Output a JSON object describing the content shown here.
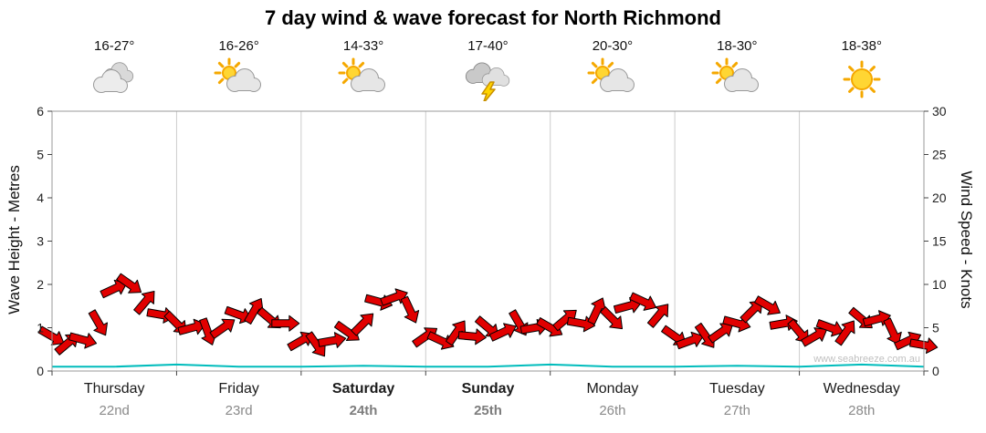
{
  "title": "7 day wind & wave forecast for North Richmond",
  "watermark": "www.seabreeze.com.au",
  "days": [
    {
      "name": "Thursday",
      "date": "22nd",
      "temp": "16-27°",
      "icon": "cloudy",
      "bold": false
    },
    {
      "name": "Friday",
      "date": "23rd",
      "temp": "16-26°",
      "icon": "partly-cloudy",
      "bold": false
    },
    {
      "name": "Saturday",
      "date": "24th",
      "temp": "14-33°",
      "icon": "partly-cloudy",
      "bold": true
    },
    {
      "name": "Sunday",
      "date": "25th",
      "temp": "17-40°",
      "icon": "thunderstorm",
      "bold": true
    },
    {
      "name": "Monday",
      "date": "26th",
      "temp": "20-30°",
      "icon": "partly-cloudy",
      "bold": false
    },
    {
      "name": "Tuesday",
      "date": "27th",
      "temp": "18-30°",
      "icon": "partly-cloudy",
      "bold": false
    },
    {
      "name": "Wednesday",
      "date": "28th",
      "temp": "18-38°",
      "icon": "sunny",
      "bold": false
    }
  ],
  "axes": {
    "left_label": "Wave Height - Metres",
    "right_label": "Wind Speed - Knots",
    "left_ticks": [
      0,
      1,
      2,
      3,
      4,
      5,
      6
    ],
    "right_ticks": [
      0,
      5,
      10,
      15,
      20,
      25,
      30
    ]
  },
  "colors": {
    "wind_fill": "#e10000",
    "wind_outline": "#000000",
    "wave_line": "#00bcbc",
    "day_separator": "#cccccc",
    "plot_border": "#999999",
    "tick": "#444444"
  },
  "chart_data": {
    "type": "line",
    "title": "7 day wind & wave forecast for North Richmond",
    "xlabel": "Day",
    "x_unit": "hours",
    "x_range": [
      0,
      168
    ],
    "wave_ylim": [
      0,
      6
    ],
    "wind_ylim": [
      0,
      30
    ],
    "legend": "none",
    "grid": "vertical day separators only",
    "wind_series": {
      "name": "Wind Speed",
      "units": "knots",
      "point_format": [
        "hour",
        "knots",
        "direction_deg"
      ],
      "points": [
        [
          0,
          4.0,
          30
        ],
        [
          3,
          3.2,
          -40
        ],
        [
          6,
          3.6,
          15
        ],
        [
          9,
          5.5,
          60
        ],
        [
          12,
          9.5,
          -25
        ],
        [
          15,
          10.0,
          35
        ],
        [
          18,
          8.0,
          -50
        ],
        [
          21,
          6.5,
          10
        ],
        [
          24,
          5.5,
          45
        ],
        [
          27,
          5.0,
          -15
        ],
        [
          30,
          4.5,
          70
        ],
        [
          33,
          5.0,
          -35
        ],
        [
          36,
          6.5,
          20
        ],
        [
          39,
          7.0,
          -60
        ],
        [
          42,
          6.0,
          40
        ],
        [
          45,
          5.5,
          0
        ],
        [
          48,
          3.5,
          -30
        ],
        [
          51,
          3.0,
          55
        ],
        [
          54,
          3.5,
          -10
        ],
        [
          57,
          4.5,
          35
        ],
        [
          60,
          5.5,
          -45
        ],
        [
          63,
          8.0,
          15
        ],
        [
          66,
          8.5,
          -20
        ],
        [
          69,
          7.0,
          65
        ],
        [
          72,
          4.0,
          -35
        ],
        [
          75,
          3.5,
          25
        ],
        [
          78,
          4.5,
          -55
        ],
        [
          81,
          4.0,
          5
        ],
        [
          84,
          5.0,
          40
        ],
        [
          87,
          4.5,
          -25
        ],
        [
          90,
          5.5,
          60
        ],
        [
          93,
          5.0,
          -10
        ],
        [
          96,
          5.0,
          30
        ],
        [
          99,
          6.0,
          -40
        ],
        [
          102,
          5.5,
          10
        ],
        [
          105,
          7.0,
          -65
        ],
        [
          108,
          6.0,
          45
        ],
        [
          111,
          7.5,
          -15
        ],
        [
          114,
          8.0,
          25
        ],
        [
          117,
          6.5,
          -50
        ],
        [
          120,
          4.0,
          35
        ],
        [
          123,
          3.5,
          -20
        ],
        [
          126,
          4.0,
          55
        ],
        [
          129,
          4.5,
          -35
        ],
        [
          132,
          5.5,
          15
        ],
        [
          135,
          7.0,
          -45
        ],
        [
          138,
          7.5,
          30
        ],
        [
          141,
          5.5,
          -10
        ],
        [
          144,
          4.5,
          50
        ],
        [
          147,
          4.0,
          -30
        ],
        [
          150,
          5.0,
          20
        ],
        [
          153,
          4.5,
          -55
        ],
        [
          156,
          6.0,
          40
        ],
        [
          159,
          6.0,
          -15
        ],
        [
          162,
          4.5,
          65
        ],
        [
          165,
          3.5,
          -25
        ],
        [
          168,
          3.0,
          10
        ]
      ]
    },
    "wave_series": {
      "name": "Wave Height",
      "units": "metres",
      "point_format": [
        "hour",
        "metres"
      ],
      "points": [
        [
          0,
          0.1
        ],
        [
          12,
          0.1
        ],
        [
          24,
          0.15
        ],
        [
          36,
          0.1
        ],
        [
          48,
          0.1
        ],
        [
          60,
          0.12
        ],
        [
          72,
          0.1
        ],
        [
          84,
          0.1
        ],
        [
          96,
          0.15
        ],
        [
          108,
          0.1
        ],
        [
          120,
          0.1
        ],
        [
          132,
          0.12
        ],
        [
          144,
          0.1
        ],
        [
          156,
          0.15
        ],
        [
          168,
          0.1
        ]
      ]
    }
  }
}
